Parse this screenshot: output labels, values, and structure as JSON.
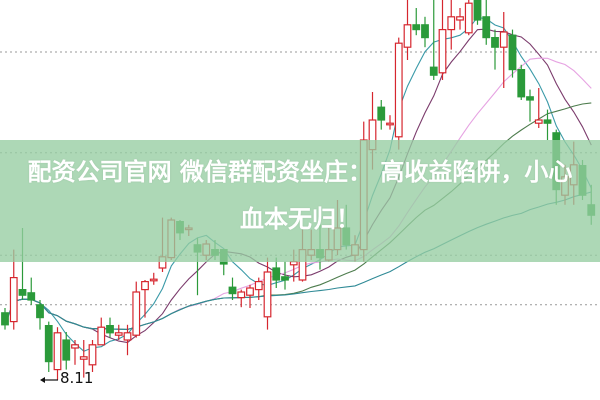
{
  "headline": {
    "full": "配资公司官网 微信群配资坐庄：高收益陷阱，小心血本无归！",
    "line1": "配资公司官网 微信群配资坐庄： 高收益陷阱，小心",
    "line2": "血本无归！"
  },
  "chart_data": {
    "type": "candlestick",
    "title": "",
    "xlabel": "",
    "ylabel": "",
    "ylim": [
      7.86,
      12.86
    ],
    "grid": "horizontal dotted",
    "gridlines": [
      9.05,
      9.67,
      10.95,
      12.21
    ],
    "moving_averages": [
      5,
      10,
      20,
      30,
      60
    ],
    "colors": {
      "up": "#d6262e",
      "down": "#2b9a3a",
      "ma5": "#3a9aa8",
      "ma10": "#7b3b6c",
      "ma20": "#e6a3e2",
      "ma30": "#4d7c4d",
      "ma60": "#2f8a96",
      "banner": "#9acfa6"
    },
    "low_marker": {
      "label": "8.11",
      "value": 8.11
    },
    "candles_ohlc": [
      [
        8.95,
        8.8,
        9.01,
        8.74
      ],
      [
        8.84,
        9.39,
        9.74,
        8.74
      ],
      [
        9.24,
        9.17,
        10.01,
        9.11
      ],
      [
        9.2,
        9.11,
        9.39,
        9.05
      ],
      [
        9.05,
        8.89,
        9.11,
        8.74
      ],
      [
        8.79,
        8.34,
        8.84,
        8.21
      ],
      [
        8.24,
        8.7,
        8.77,
        8.11
      ],
      [
        8.61,
        8.36,
        8.71,
        8.24
      ],
      [
        8.51,
        8.55,
        8.61,
        8.3
      ],
      [
        8.37,
        8.4,
        8.61,
        8.14
      ],
      [
        8.3,
        8.55,
        8.61,
        8.21
      ],
      [
        8.55,
        8.77,
        8.89,
        8.55
      ],
      [
        8.79,
        8.7,
        8.89,
        8.64
      ],
      [
        8.67,
        8.7,
        8.8,
        8.61
      ],
      [
        8.61,
        8.7,
        8.8,
        8.42
      ],
      [
        8.67,
        9.21,
        9.34,
        8.64
      ],
      [
        9.24,
        9.34,
        9.36,
        8.89
      ],
      [
        9.35,
        9.37,
        9.45,
        9.3
      ],
      [
        9.51,
        9.65,
        10.14,
        9.46
      ],
      [
        9.64,
        10.11,
        10.14,
        9.61
      ],
      [
        10.09,
        9.95,
        10.11,
        9.86
      ],
      [
        9.99,
        10.01,
        10.05,
        9.91
      ],
      [
        9.8,
        9.71,
        9.89,
        9.17
      ],
      [
        9.67,
        9.81,
        9.86,
        9.61
      ],
      [
        9.74,
        9.67,
        9.86,
        9.61
      ],
      [
        9.74,
        9.56,
        9.74,
        9.42
      ],
      [
        9.27,
        9.19,
        9.39,
        9.11
      ],
      [
        9.14,
        9.21,
        9.24,
        9.02
      ],
      [
        9.17,
        9.26,
        9.3,
        9.01
      ],
      [
        9.24,
        9.34,
        9.39,
        9.11
      ],
      [
        8.9,
        9.46,
        9.64,
        8.74
      ],
      [
        9.51,
        9.36,
        9.64,
        9.26
      ],
      [
        9.4,
        9.36,
        9.59,
        9.24
      ],
      [
        9.55,
        9.59,
        9.74,
        9.34
      ],
      [
        9.36,
        9.74,
        9.99,
        9.34
      ],
      [
        9.67,
        9.74,
        9.99,
        9.61
      ],
      [
        9.74,
        9.64,
        10.05,
        9.49
      ],
      [
        9.61,
        9.74,
        10.01,
        9.59
      ],
      [
        9.74,
        10.01,
        10.36,
        9.67
      ],
      [
        10.01,
        9.8,
        10.3,
        9.74
      ],
      [
        9.67,
        9.8,
        9.92,
        9.59
      ],
      [
        9.74,
        11.11,
        11.34,
        9.59
      ],
      [
        10.99,
        11.36,
        11.71,
        10.74
      ],
      [
        11.52,
        11.36,
        11.61,
        11.24
      ],
      [
        11.3,
        11.32,
        11.42,
        11.24
      ],
      [
        11.15,
        12.32,
        12.39,
        10.99
      ],
      [
        12.27,
        12.55,
        12.86,
        12.11
      ],
      [
        12.55,
        12.49,
        12.76,
        12.42
      ],
      [
        12.55,
        12.39,
        12.65,
        12.27
      ],
      [
        12.02,
        11.92,
        12.86,
        11.86
      ],
      [
        11.95,
        12.49,
        12.86,
        11.86
      ],
      [
        12.49,
        12.65,
        12.86,
        12.24
      ],
      [
        12.61,
        12.65,
        12.76,
        12.49
      ],
      [
        12.45,
        12.82,
        12.86,
        12.42
      ],
      [
        12.86,
        12.61,
        12.86,
        12.55
      ],
      [
        12.65,
        12.39,
        12.86,
        12.3
      ],
      [
        12.39,
        12.27,
        12.49,
        11.99
      ],
      [
        12.27,
        12.46,
        12.71,
        11.76
      ],
      [
        12.42,
        11.99,
        12.49,
        11.89
      ],
      [
        11.99,
        11.65,
        12.05,
        11.61
      ],
      [
        11.65,
        11.61,
        11.74,
        11.34
      ],
      [
        11.32,
        11.36,
        11.76,
        11.26
      ],
      [
        11.36,
        11.32,
        11.49,
        11.11
      ],
      [
        11.2,
        10.49,
        11.24,
        10.3
      ],
      [
        10.42,
        10.65,
        10.8,
        10.3
      ],
      [
        10.55,
        10.8,
        11.09,
        10.3
      ],
      [
        10.79,
        10.42,
        10.86,
        10.36
      ],
      [
        10.3,
        10.17,
        10.55,
        10.05
      ]
    ]
  }
}
